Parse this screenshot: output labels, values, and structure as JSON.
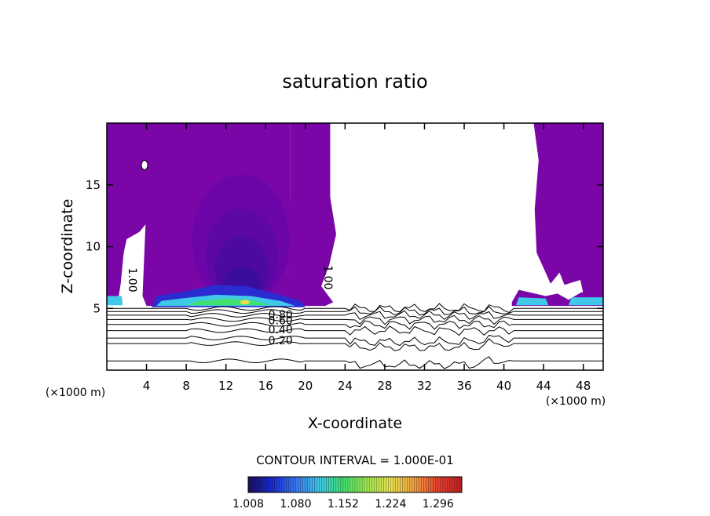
{
  "chart_data": {
    "type": "contour",
    "title": "saturation ratio",
    "xlabel": "X-coordinate",
    "ylabel": "Z-coordinate",
    "x_unit": "(×1000 m)",
    "xlim": [
      0,
      50
    ],
    "ylim": [
      0,
      20
    ],
    "x_ticks": [
      4,
      8,
      12,
      16,
      20,
      24,
      28,
      32,
      36,
      40,
      44,
      48
    ],
    "y_ticks": [
      5,
      10,
      15
    ],
    "contour_interval_text": "CONTOUR INTERVAL = 1.000E-01",
    "line_contour_levels": [
      0.2,
      0.4,
      0.6,
      0.8,
      1.0
    ],
    "line_contour_labels": [
      "0.20",
      "0.40",
      "0.60",
      "0.80",
      "1.00"
    ],
    "colorbar": {
      "min": 1.008,
      "max": 1.332,
      "tick_labels": [
        "1.008",
        "1.080",
        "1.152",
        "1.224",
        "1.296"
      ],
      "colors": [
        "#1a1060",
        "#1a2bd0",
        "#3a78f0",
        "#40c8e8",
        "#40e070",
        "#a0e850",
        "#e8e050",
        "#f0a040",
        "#e84030",
        "#c02020"
      ]
    },
    "fill_base_color": "#7a06a8",
    "grid": false
  }
}
